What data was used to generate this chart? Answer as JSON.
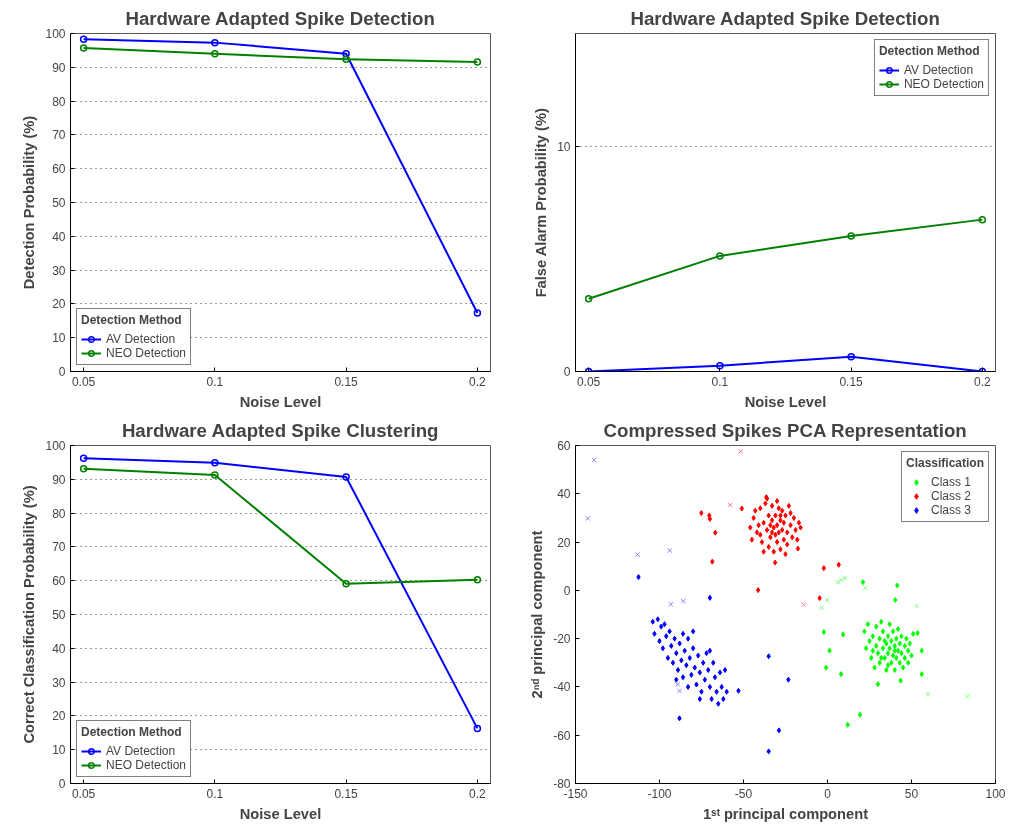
{
  "chart_data": [
    {
      "type": "line",
      "title": "Hardware Adapted Spike Detection",
      "xlabel": "Noise Level",
      "ylabel": "Detection Probability (%)",
      "x": [
        0.05,
        0.1,
        0.15,
        0.2
      ],
      "xlim": [
        0.045,
        0.205
      ],
      "xticks": [
        0.05,
        0.1,
        0.15,
        0.2
      ],
      "ylim": [
        0,
        100
      ],
      "yticks": [
        0,
        10,
        20,
        30,
        40,
        50,
        60,
        70,
        80,
        90,
        100
      ],
      "grid": "y",
      "legend": "bottom left",
      "legend_title": "Detection Method",
      "marker": "circle",
      "series": [
        {
          "name": "AV Detection",
          "color": "#0000ff",
          "values": [
            98.3,
            97.3,
            94.0,
            17.3
          ]
        },
        {
          "name": "NEO Detection",
          "color": "#008000",
          "values": [
            95.7,
            94.0,
            92.4,
            91.6
          ]
        }
      ]
    },
    {
      "type": "line",
      "title": "Hardware Adapted Spike Detection",
      "xlabel": "Noise Level",
      "ylabel": "False Alarm Probability (%)",
      "x": [
        0.05,
        0.1,
        0.15,
        0.2
      ],
      "xlim": [
        0.045,
        0.205
      ],
      "xticks": [
        0.05,
        0.1,
        0.15,
        0.2
      ],
      "ylim": [
        0,
        15
      ],
      "yticks": [
        0,
        10
      ],
      "grid": "y",
      "legend": "top right",
      "legend_title": "Detection Method",
      "marker": "circle",
      "series": [
        {
          "name": "AV Detection",
          "color": "#0000ff",
          "values": [
            0,
            0.26,
            0.65,
            0
          ]
        },
        {
          "name": "NEO Detection",
          "color": "#008000",
          "values": [
            3.23,
            5.13,
            6.01,
            6.74
          ]
        }
      ]
    },
    {
      "type": "line",
      "title": "Hardware Adapted Spike Clustering",
      "xlabel": "Noise Level",
      "ylabel": "Correct Classification Probability (%)",
      "x": [
        0.05,
        0.1,
        0.15,
        0.2
      ],
      "xlim": [
        0.045,
        0.205
      ],
      "xticks": [
        0.05,
        0.1,
        0.15,
        0.2
      ],
      "ylim": [
        0,
        100
      ],
      "yticks": [
        0,
        10,
        20,
        30,
        40,
        50,
        60,
        70,
        80,
        90,
        100
      ],
      "grid": "y",
      "legend": "bottom left",
      "legend_title": "Detection Method",
      "marker": "circle",
      "series": [
        {
          "name": "AV Detection",
          "color": "#0000ff",
          "values": [
            96.2,
            94.9,
            90.7,
            16.3
          ]
        },
        {
          "name": "NEO Detection",
          "color": "#008000",
          "values": [
            93.1,
            91.3,
            59.1,
            60.3
          ]
        }
      ]
    },
    {
      "type": "scatter",
      "title": "Compressed Spikes PCA Representation",
      "xlabel": "1ˢᵗ principal component",
      "ylabel": "2ⁿᵈ principal component",
      "xlim": [
        -150,
        100
      ],
      "xticks": [
        -150,
        -100,
        -50,
        0,
        50,
        100
      ],
      "ylim": [
        -80,
        60
      ],
      "yticks": [
        -80,
        -60,
        -40,
        -20,
        0,
        20,
        40,
        60
      ],
      "grid": false,
      "legend": "top right",
      "legend_title": "Classification",
      "series": [
        {
          "name": "Class 1",
          "color": "#00ff00",
          "marker": "diamond",
          "x": [
            22,
            23,
            24,
            25,
            26,
            27,
            28,
            29,
            29,
            30,
            31,
            31,
            32,
            33,
            33,
            34,
            35,
            35,
            36,
            36,
            37,
            37,
            38,
            38,
            39,
            39,
            40,
            40,
            41,
            41,
            42,
            42,
            43,
            43,
            44,
            44,
            45,
            46,
            46,
            47,
            48,
            48,
            49,
            50,
            51,
            27,
            32,
            36,
            40,
            34,
            -2.2,
            1.2,
            -0.8,
            8.1,
            9.3,
            21.1,
            41.5,
            40.3,
            12,
            19.4,
            30,
            43.5,
            56.1,
            53.6,
            56.1
          ],
          "values": [
            -17,
            -24,
            -14,
            -21,
            -28,
            -19,
            -32,
            -23,
            -15,
            -26,
            -20,
            -30,
            -13,
            -24,
            -17,
            -28,
            -22,
            -33,
            -19,
            -26,
            -14,
            -24,
            -30,
            -21,
            -27,
            -17,
            -23,
            -33,
            -20,
            -28,
            -25,
            -16,
            -30,
            -22,
            -26,
            -19,
            -32,
            -23,
            -28,
            -20,
            -25,
            -30,
            -22,
            -27,
            -18,
            -25,
            -28,
            -31,
            -25,
            -21,
            -17.3,
            -25,
            -32,
            -34.7,
            -18.3,
            3.4,
            2,
            -4,
            -55.7,
            -51.5,
            -38.9,
            -37.4,
            -34.7,
            -17.7,
            -25
          ]
        },
        {
          "name": "Class 2",
          "color": "#ff0000",
          "marker": "diamond",
          "x": [
            -44,
            -42,
            -40,
            -39,
            -38,
            -37,
            -36,
            -35,
            -35,
            -34,
            -33,
            -33,
            -32,
            -32,
            -31,
            -31,
            -30,
            -30,
            -29,
            -29,
            -28,
            -28,
            -27,
            -27,
            -26,
            -26,
            -25,
            -24,
            -24,
            -23,
            -22,
            -21,
            -20,
            -19,
            -18,
            -17,
            -46,
            -45,
            -43,
            -41,
            -38,
            -36,
            -34,
            -30,
            -25,
            -22,
            -16,
            -40,
            -33,
            -28,
            -75.1,
            -70.4,
            -70,
            -66.8,
            -68.6,
            -41.3,
            -31.2,
            -51,
            -2.2,
            6.7,
            -4.7,
            -17.6,
            -36.4
          ],
          "values": [
            30,
            24,
            34,
            20,
            28,
            36,
            25,
            31,
            18,
            22,
            29,
            35,
            26,
            16,
            23,
            31,
            27,
            20,
            34,
            24,
            29,
            17,
            25,
            33,
            21,
            28,
            31,
            24,
            19,
            35,
            27,
            22,
            30,
            25,
            21,
            28,
            26,
            21,
            33,
            27,
            16,
            38,
            27,
            37,
            15,
            32,
            26,
            23,
            24,
            31,
            32,
            31,
            29.6,
            23.9,
            11.9,
            0.1,
            11.5,
            33.9,
            9.2,
            10.6,
            -3.2,
            17.3,
            38.6
          ]
        },
        {
          "name": "Class 3",
          "color": "#0000ff",
          "marker": "diamond",
          "x": [
            -104,
            -103,
            -101,
            -100,
            -99,
            -98,
            -97,
            -96,
            -95,
            -94,
            -93,
            -92,
            -91,
            -90,
            -89,
            -88,
            -87,
            -86,
            -85,
            -84,
            -83,
            -82,
            -81,
            -80,
            -79,
            -78,
            -77,
            -76,
            -75,
            -74,
            -73,
            -72,
            -71,
            -70,
            -69,
            -68,
            -67,
            -66,
            -65,
            -64,
            -63,
            -62,
            -61,
            -60,
            -86,
            -80,
            -90,
            -76,
            -70,
            -83,
            -112.5,
            -70,
            -35,
            -23.3,
            -28.9,
            -35,
            -88.1,
            -53
          ],
          "values": [
            -13,
            -18,
            -12,
            -21,
            -15,
            -24,
            -14,
            -19,
            -28,
            -17,
            -23,
            -30,
            -20,
            -26,
            -33,
            -22,
            -29,
            -36,
            -25,
            -31,
            -20,
            -28,
            -35,
            -24,
            -32,
            -39,
            -27,
            -34,
            -42,
            -30,
            -37,
            -26,
            -33,
            -40,
            -45,
            -30,
            -36,
            -42,
            -47,
            -34,
            -40,
            -45,
            -33,
            -42,
            -18,
            -17,
            -37,
            -45,
            -25,
            -40,
            5.5,
            -3.1,
            -27.3,
            -37,
            -58,
            -66.7,
            -53,
            -41.6
          ]
        },
        {
          "color": "#80ff80",
          "marker": "cross",
          "x": [
            -3.6,
            -0.2,
            6.1,
            8.1,
            10.5,
            22.5,
            53,
            59.9,
            83.4
          ],
          "values": [
            -7.2,
            -4,
            3.4,
            4.4,
            5.1,
            1.1,
            -6.5,
            -43,
            -43.9
          ]
        },
        {
          "color": "#ff8080",
          "marker": "cross",
          "x": [
            -51.6,
            -57.9,
            -14.2
          ],
          "values": [
            57.6,
            35.3,
            -5.9
          ]
        },
        {
          "color": "#8080ff",
          "marker": "cross",
          "x": [
            -138.9,
            -142.7,
            -113,
            -93.9,
            -93.3,
            -85.8,
            -89.1,
            -88.1
          ],
          "values": [
            54,
            29.8,
            14.8,
            16.5,
            -5.8,
            -4.5,
            -38.9,
            -41.6
          ]
        }
      ]
    }
  ]
}
